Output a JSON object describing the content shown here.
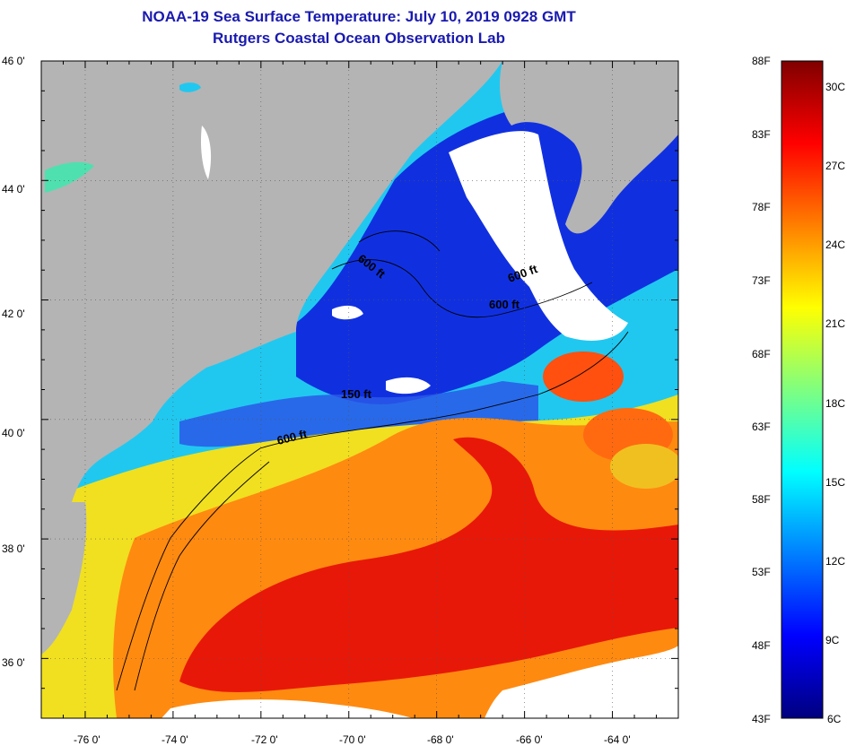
{
  "header": {
    "title": "NOAA-19 Sea Surface Temperature:  July 10, 2019 0928 GMT",
    "subtitle": "Rutgers Coastal Ocean Observation Lab"
  },
  "map": {
    "lon_range": [
      -77,
      -62.5
    ],
    "lat_range": [
      35,
      46
    ],
    "lat_ticks": [
      "46 0'",
      "44 0'",
      "42 0'",
      "40 0'",
      "38 0'",
      "36 0'"
    ],
    "lon_ticks": [
      "-76 0'",
      "-74 0'",
      "-72 0'",
      "-70 0'",
      "-68 0'",
      "-66 0'",
      "-64 0'"
    ],
    "grid": "dotted",
    "contour_labels": [
      "600 ft",
      "600 ft",
      "600 ft",
      "150 ft",
      "600 ft"
    ],
    "colors": {
      "land": "#b4b4b4",
      "cloud": "#ffffff",
      "cold": "#1030e0",
      "cool": "#20c8f0",
      "mild": "#f0e020",
      "warm": "#ff8a10",
      "hot": "#e81808"
    }
  },
  "colorbar": {
    "fahrenheit_labels": [
      "88F",
      "83F",
      "78F",
      "73F",
      "68F",
      "63F",
      "58F",
      "53F",
      "48F",
      "43F"
    ],
    "celsius_labels": [
      "30C",
      "27C",
      "24C",
      "21C",
      "18C",
      "15C",
      "12C",
      "9C",
      "6C"
    ],
    "colors": [
      "#00007f",
      "#0000ff",
      "#007fff",
      "#00ffff",
      "#7fff7f",
      "#ffff00",
      "#ff7f00",
      "#ff0000",
      "#7f0000"
    ]
  }
}
